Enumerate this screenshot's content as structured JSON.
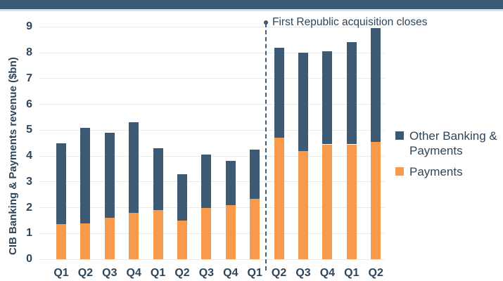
{
  "header": {
    "strip_color": "#3b5a75",
    "underline_color": "#d8e1e7"
  },
  "chart_data": {
    "type": "bar",
    "stacked": true,
    "title": "",
    "xlabel": "",
    "ylabel": "CIB Banking & Payments revenue ($bn)",
    "ylim": [
      0,
      9
    ],
    "yticks": [
      0,
      1,
      2,
      3,
      4,
      5,
      6,
      7,
      8,
      9
    ],
    "grid": true,
    "legend_position": "right",
    "categories": [
      "Q1",
      "Q2",
      "Q3",
      "Q4",
      "Q1",
      "Q2",
      "Q3",
      "Q4",
      "Q1",
      "Q2",
      "Q3",
      "Q4",
      "Q1",
      "Q2"
    ],
    "series": [
      {
        "name": "Payments",
        "color": "#f89a4c",
        "values": [
          1.35,
          1.4,
          1.6,
          1.8,
          1.9,
          1.5,
          2.0,
          2.1,
          2.35,
          4.7,
          4.2,
          4.45,
          4.45,
          4.55
        ]
      },
      {
        "name": "Other Banking & Payments",
        "color": "#3c5a73",
        "values": [
          3.15,
          3.7,
          3.3,
          3.5,
          2.4,
          1.8,
          2.05,
          1.7,
          1.9,
          3.5,
          3.8,
          3.6,
          3.95,
          4.4
        ]
      }
    ],
    "totals": [
      4.5,
      5.1,
      4.9,
      5.3,
      4.3,
      3.3,
      4.05,
      3.8,
      4.25,
      8.2,
      8.0,
      8.05,
      8.4,
      8.95
    ],
    "annotation": {
      "label": "First Republic acquisition closes",
      "after_category_index": 8,
      "line_style": "dashed",
      "line_color": "#3d5d7a"
    },
    "text_color": "#2f4559",
    "gridline_color": "#e9ebeb"
  }
}
